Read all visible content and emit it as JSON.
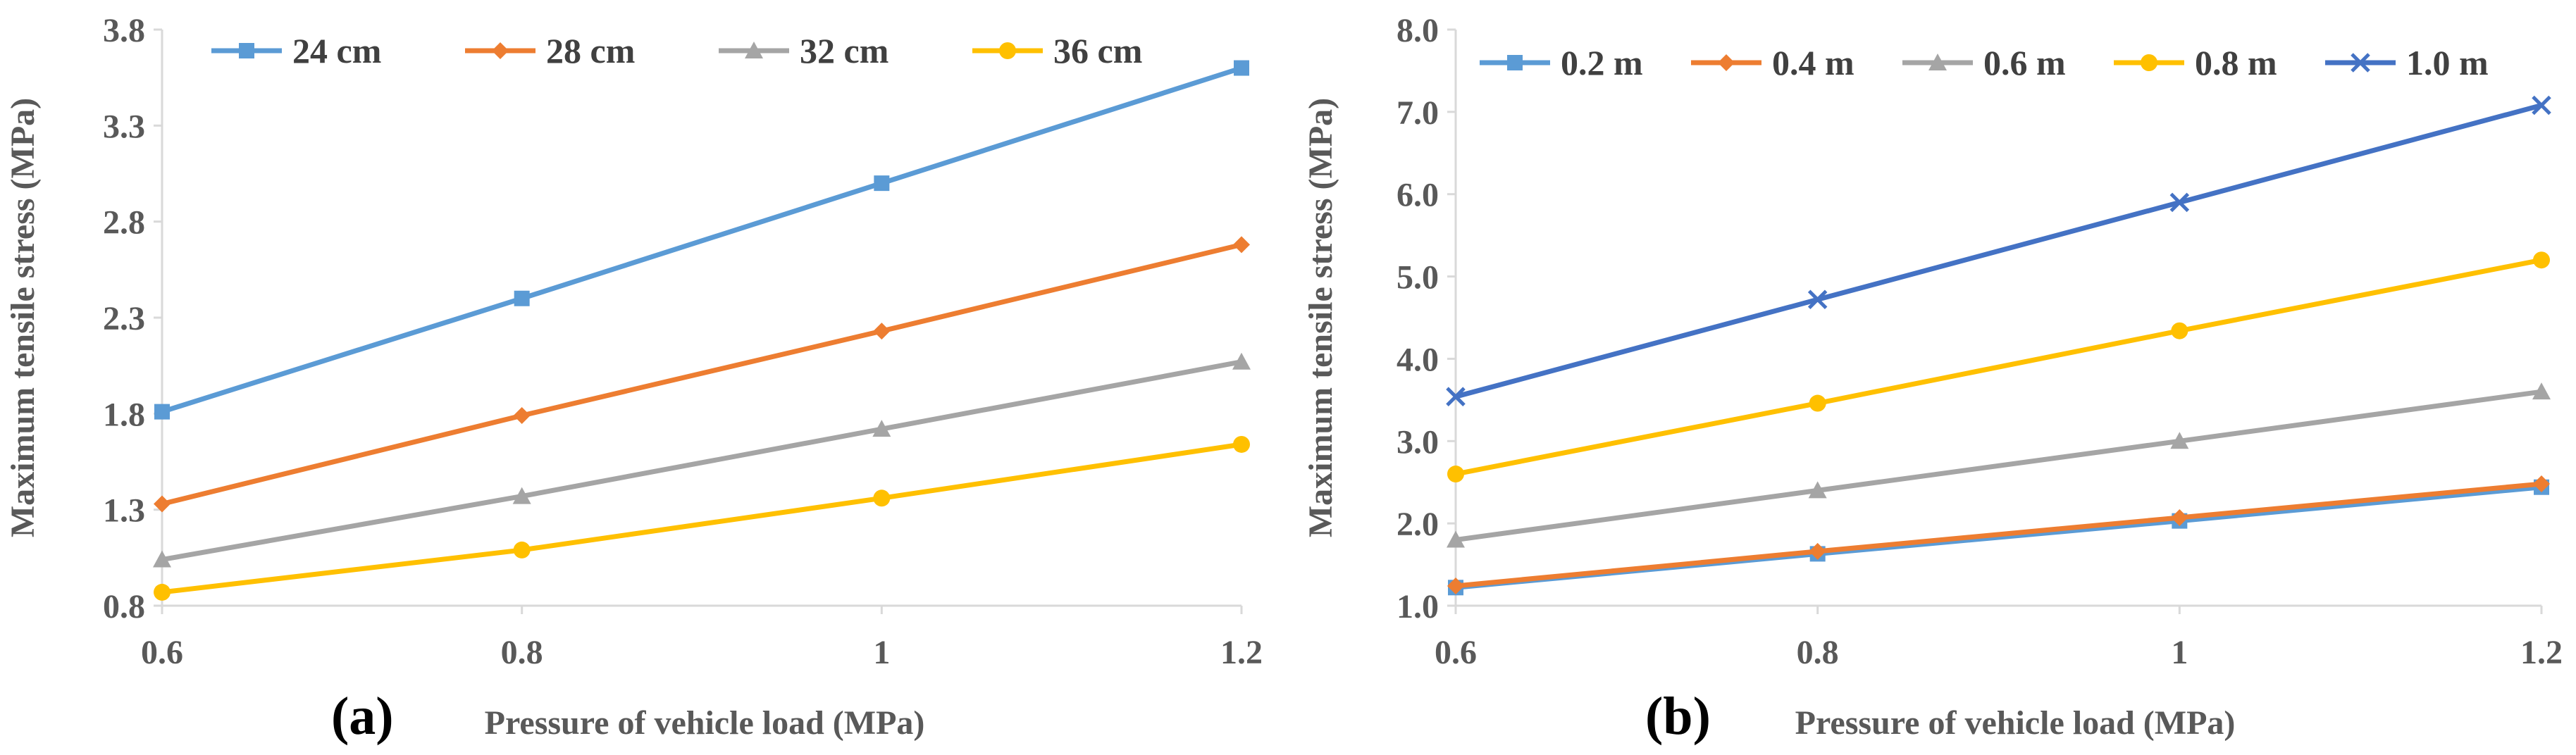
{
  "chart_data": [
    {
      "type": "line",
      "panel_label": "(a)",
      "title": "",
      "xlabel": "Pressure of vehicle load (MPa)",
      "ylabel": "Maximum tensile stress (MPa)",
      "x": [
        0.6,
        0.8,
        1.0,
        1.2
      ],
      "xticks": [
        "0.6",
        "0.8",
        "1",
        "1.2"
      ],
      "xlim": [
        0.6,
        1.2
      ],
      "ylim": [
        0.8,
        3.8
      ],
      "yticks": [
        "0.8",
        "1.3",
        "1.8",
        "2.3",
        "2.8",
        "3.3",
        "3.8"
      ],
      "grid": false,
      "legend_position": "top",
      "series": [
        {
          "name": "24 cm",
          "values": [
            1.81,
            2.4,
            3.0,
            3.6
          ],
          "color": "#5B9BD5",
          "marker": "square"
        },
        {
          "name": "28 cm",
          "values": [
            1.33,
            1.79,
            2.23,
            2.68
          ],
          "color": "#ED7D31",
          "marker": "diamond"
        },
        {
          "name": "32 cm",
          "values": [
            1.04,
            1.37,
            1.72,
            2.07
          ],
          "color": "#A5A5A5",
          "marker": "triangle"
        },
        {
          "name": "36 cm",
          "values": [
            0.87,
            1.09,
            1.36,
            1.64
          ],
          "color": "#FFC000",
          "marker": "circle"
        }
      ]
    },
    {
      "type": "line",
      "panel_label": "(b)",
      "title": "",
      "xlabel": "Pressure of vehicle load (MPa)",
      "ylabel": "Maximum tensile stress (MPa)",
      "x": [
        0.6,
        0.8,
        1.0,
        1.2
      ],
      "xticks": [
        "0.6",
        "0.8",
        "1",
        "1.2"
      ],
      "xlim": [
        0.6,
        1.2
      ],
      "ylim": [
        1.0,
        8.0
      ],
      "yticks": [
        "1.0",
        "2.0",
        "3.0",
        "4.0",
        "5.0",
        "6.0",
        "7.0",
        "8.0"
      ],
      "grid": false,
      "legend_position": "top",
      "series": [
        {
          "name": "0.2 m",
          "values": [
            1.22,
            1.63,
            2.03,
            2.44
          ],
          "color": "#5B9BD5",
          "marker": "square"
        },
        {
          "name": "0.4 m",
          "values": [
            1.24,
            1.66,
            2.07,
            2.48
          ],
          "color": "#ED7D31",
          "marker": "diamond"
        },
        {
          "name": "0.6 m",
          "values": [
            1.8,
            2.4,
            3.0,
            3.6
          ],
          "color": "#A5A5A5",
          "marker": "triangle"
        },
        {
          "name": "0.8 m",
          "values": [
            2.6,
            3.46,
            4.34,
            5.2
          ],
          "color": "#FFC000",
          "marker": "circle"
        },
        {
          "name": "1.0 m",
          "values": [
            3.54,
            4.72,
            5.9,
            7.08
          ],
          "color": "#4472C4",
          "marker": "x"
        }
      ]
    }
  ]
}
